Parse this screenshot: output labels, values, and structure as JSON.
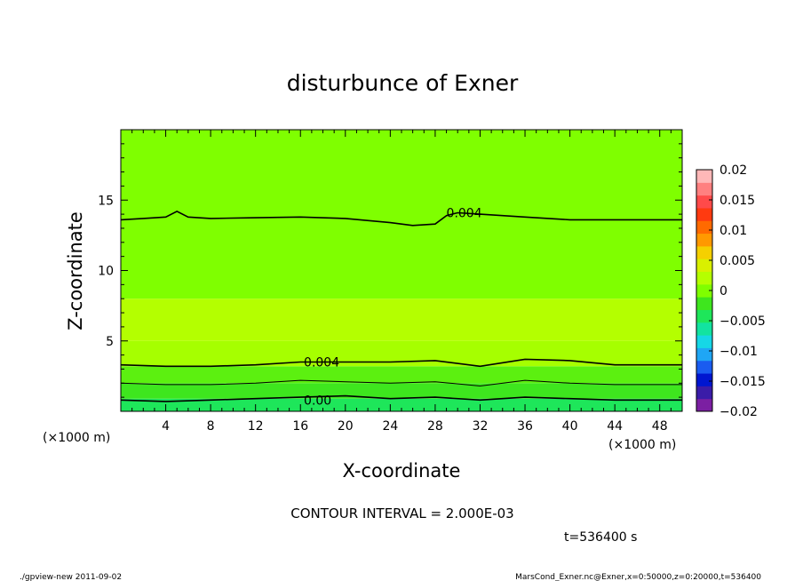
{
  "chart_data": {
    "type": "heatmap",
    "title": "disturbunce of Exner",
    "xlabel": "X-coordinate",
    "ylabel": "Z-coordinate",
    "x_unit_left": "(×1000 m)",
    "x_unit_right": "(×1000 m)",
    "xlim": [
      0,
      50
    ],
    "ylim": [
      0,
      20
    ],
    "x_ticks": [
      4,
      8,
      12,
      16,
      20,
      24,
      28,
      32,
      36,
      40,
      44,
      48
    ],
    "y_ticks": [
      5,
      10,
      15
    ],
    "contour_interval_text": "CONTOUR INTERVAL = 2.000E-03",
    "time_text": "t=536400 s",
    "colorbar": {
      "ticks": [
        0.02,
        0.015,
        0.01,
        0.005,
        0,
        -0.005,
        -0.01,
        -0.015,
        -0.02
      ],
      "tick_labels": [
        "0.02",
        "0.015",
        "0.01",
        "0.005",
        "0",
        "−0.005",
        "−0.01",
        "−0.015",
        "−0.02"
      ],
      "range": [
        -0.02,
        0.02
      ],
      "colors": [
        "#7b1fa2",
        "#3a1ca8",
        "#0016d0",
        "#1a5cf0",
        "#1fa6f5",
        "#16d7e6",
        "#12e3a0",
        "#1ee65a",
        "#3ee61e",
        "#7fff00",
        "#b5ff00",
        "#d9f000",
        "#f5d000",
        "#ff9900",
        "#ff6a00",
        "#ff3a10",
        "#ff4a4a",
        "#ff8080",
        "#ffb8b8"
      ]
    },
    "fill_bands": [
      {
        "z_range": [
          0,
          0.9
        ],
        "level": 0.001,
        "color": "#1ee65a"
      },
      {
        "z_range": [
          0.9,
          2.0
        ],
        "level": 0.002,
        "color": "#3ee61e"
      },
      {
        "z_range": [
          2.0,
          3.2
        ],
        "level": 0.003,
        "color": "#5cf010"
      },
      {
        "z_range": [
          3.2,
          5.0
        ],
        "level": 0.0045,
        "color": "#a6ff00"
      },
      {
        "z_range": [
          5.0,
          8.0
        ],
        "level": 0.0052,
        "color": "#b4ff00"
      },
      {
        "z_range": [
          8.0,
          20.0
        ],
        "level": 0.0035,
        "color": "#7fff00"
      }
    ],
    "contours": [
      {
        "level_label": "0.004",
        "label_at": [
          29.0,
          14.1
        ],
        "x": [
          0,
          2,
          4,
          5,
          6,
          8,
          12,
          16,
          20,
          24,
          26,
          28,
          29,
          30,
          32,
          36,
          40,
          44,
          48,
          50
        ],
        "z": [
          13.6,
          13.7,
          13.8,
          14.2,
          13.8,
          13.7,
          13.75,
          13.8,
          13.7,
          13.4,
          13.2,
          13.3,
          13.9,
          14.1,
          14.0,
          13.8,
          13.6,
          13.6,
          13.6,
          13.6
        ]
      },
      {
        "level_label": "0.004",
        "label_at": [
          16.3,
          3.5
        ],
        "x": [
          0,
          4,
          8,
          12,
          16,
          20,
          24,
          28,
          32,
          36,
          40,
          44,
          48,
          50
        ],
        "z": [
          3.3,
          3.2,
          3.2,
          3.3,
          3.5,
          3.5,
          3.5,
          3.6,
          3.2,
          3.7,
          3.6,
          3.3,
          3.3,
          3.3
        ]
      },
      {
        "level_label": "",
        "x": [
          0,
          4,
          8,
          12,
          16,
          20,
          24,
          28,
          32,
          36,
          40,
          44,
          48,
          50
        ],
        "z": [
          2.0,
          1.9,
          1.9,
          2.0,
          2.2,
          2.1,
          2.0,
          2.1,
          1.8,
          2.2,
          2.0,
          1.9,
          1.9,
          1.9
        ]
      },
      {
        "level_label": "0.00",
        "label_at": [
          16.3,
          0.8
        ],
        "x": [
          0,
          4,
          8,
          12,
          16,
          20,
          24,
          28,
          32,
          36,
          40,
          44,
          48,
          50
        ],
        "z": [
          0.8,
          0.7,
          0.8,
          0.9,
          1.0,
          1.1,
          0.9,
          1.0,
          0.8,
          1.0,
          0.9,
          0.8,
          0.8,
          0.8
        ]
      }
    ],
    "grid": false,
    "legend": "right"
  },
  "footer": {
    "left": "./gpview-new  2011-09-02",
    "right": "MarsCond_Exner.nc@Exner,x=0:50000,z=0:20000,t=536400"
  }
}
